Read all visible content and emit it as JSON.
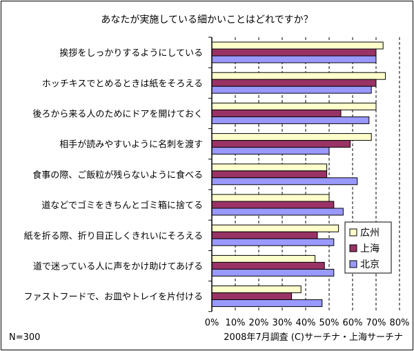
{
  "chart_data": {
    "type": "bar",
    "orientation": "horizontal",
    "title": "あなたが実施している細かいことはどれですか？",
    "categories": [
      "挨拶をしっかりするようにしている",
      "ホッチキスでとめるときは紙をそろえる",
      "後ろから来る人のためにドアを開けておく",
      "相手が読みやすいように名刺を渡す",
      "食事の際、ご飯粒が残らないように食べる",
      "道などでゴミをきちんとゴミ箱に捨てる",
      "紙を折る際、折り目正しくきれいにそろえる",
      "道で迷っている人に声をかけ助けてあげる",
      "ファストフードで、お皿やトレイを片付ける"
    ],
    "series": [
      {
        "name": "広州",
        "color": "#ffffcc",
        "values": [
          73,
          74,
          70,
          68,
          49,
          50,
          54,
          44,
          38
        ]
      },
      {
        "name": "上海",
        "color": "#993366",
        "values": [
          70,
          70,
          55,
          59,
          49,
          52,
          45,
          48,
          34
        ]
      },
      {
        "name": "北京",
        "color": "#9999ff",
        "values": [
          70,
          68,
          67,
          50,
          62,
          56,
          52,
          52,
          47
        ]
      }
    ],
    "x_ticks": [
      "0%",
      "10%",
      "20%",
      "30%",
      "40%",
      "50%",
      "60%",
      "70%",
      "80%"
    ],
    "xlim": [
      0,
      80
    ],
    "legend_position": "right",
    "grid": "vertical dashed"
  },
  "footer": {
    "sample_size": "N=300",
    "source": "2008年7月調査 (C)サーチナ・上海サーチナ"
  }
}
